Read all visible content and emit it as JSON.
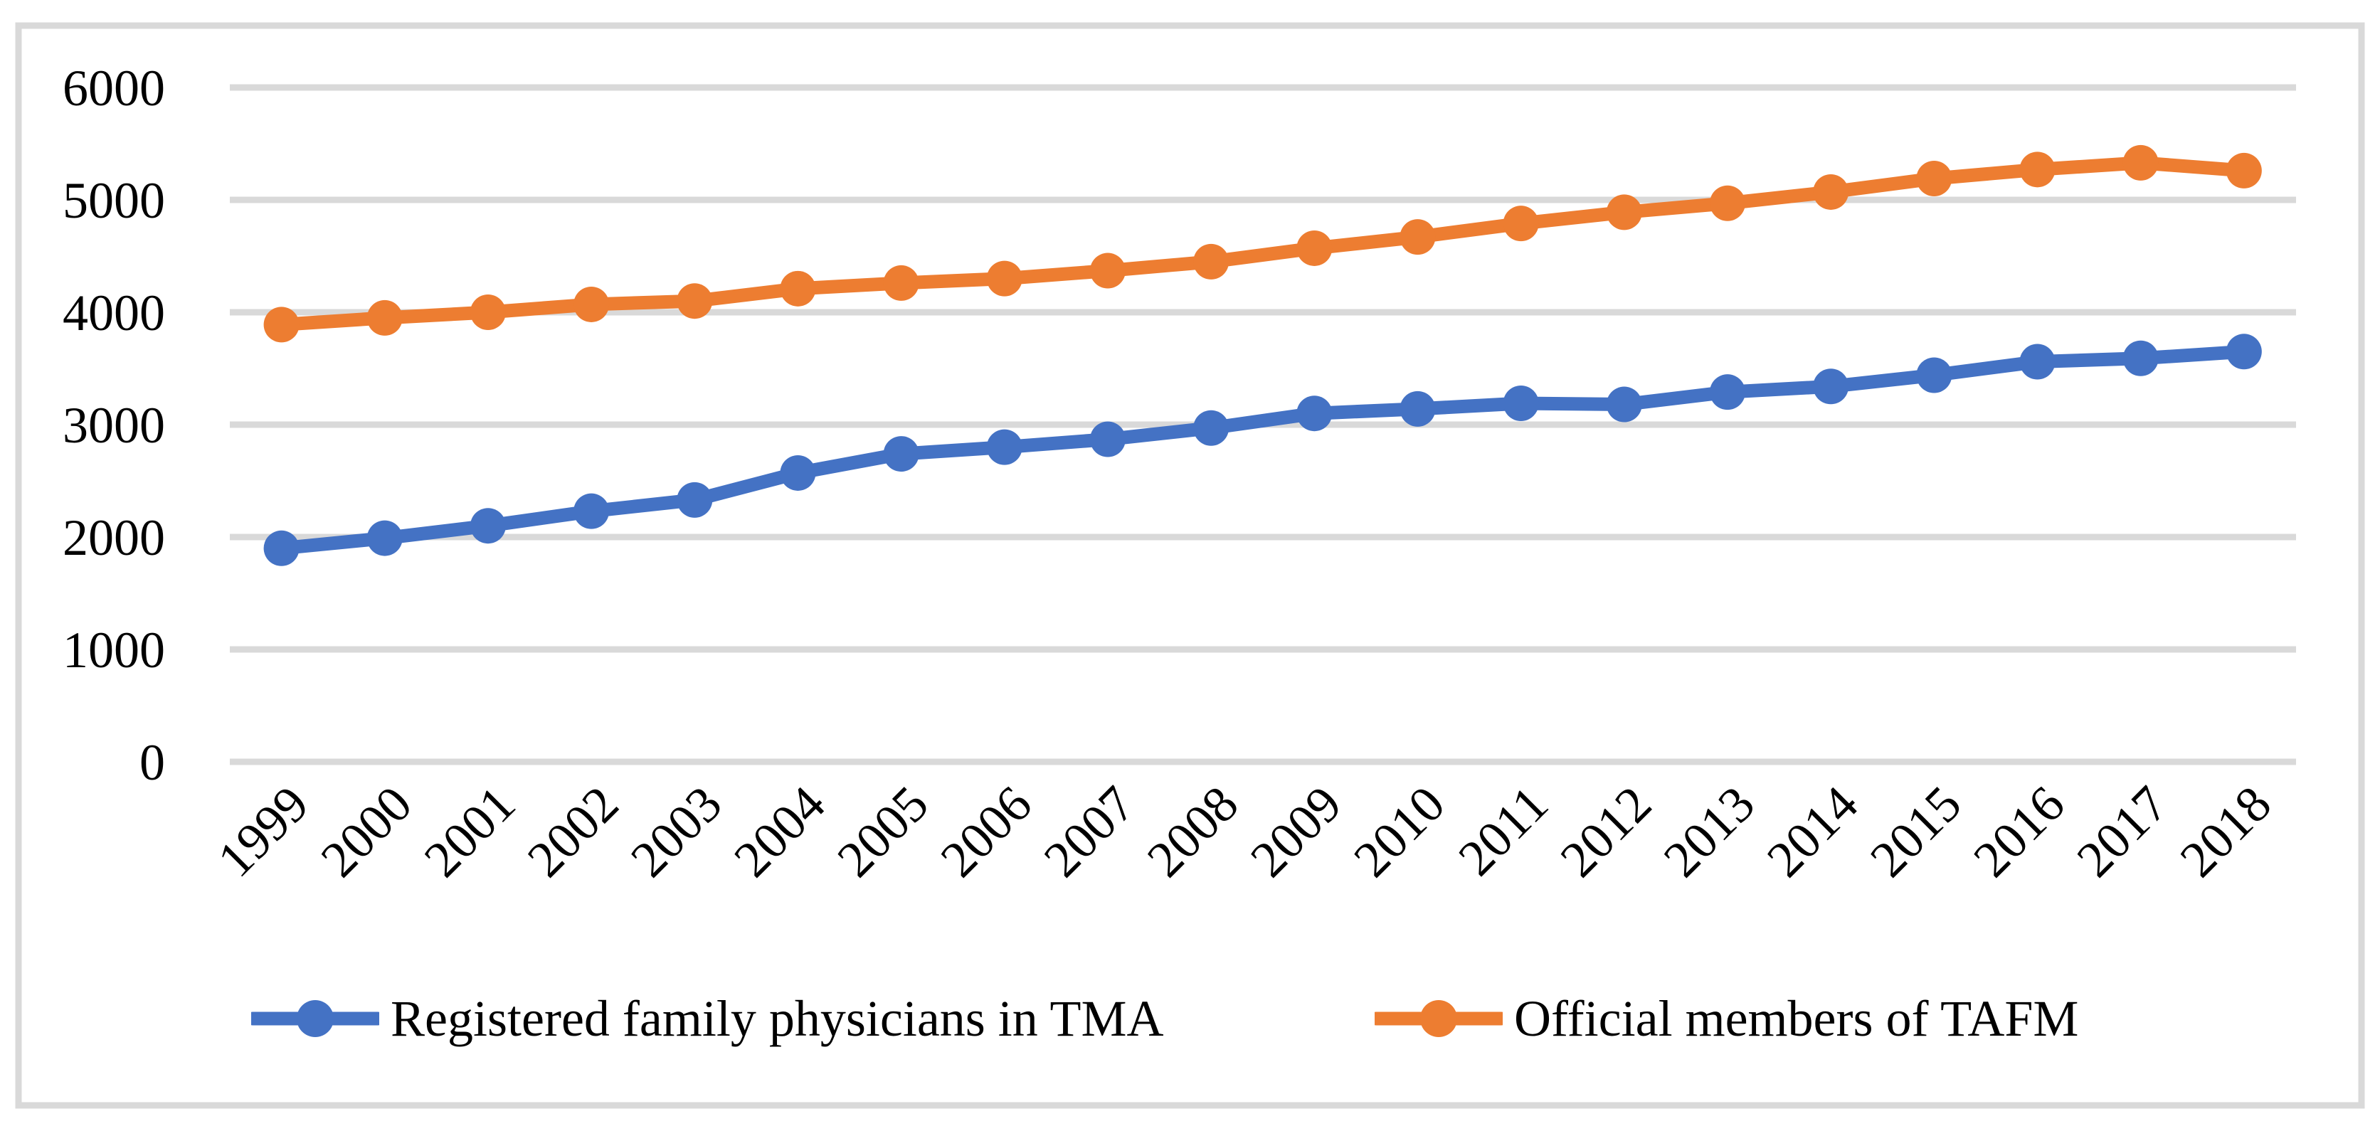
{
  "figure": {
    "background": "#FFFFFF",
    "border_color": "#D9D9D9",
    "text_color": "#000000"
  },
  "chart_data": {
    "type": "line",
    "x": [
      "1999",
      "2000",
      "2001",
      "2002",
      "2003",
      "2004",
      "2005",
      "2006",
      "2007",
      "2008",
      "2009",
      "2010",
      "2011",
      "2012",
      "2013",
      "2014",
      "2015",
      "2016",
      "2017",
      "2018"
    ],
    "series": [
      {
        "name": "Registered family physicians in TMA",
        "color": "#4472C4",
        "values": [
          1900,
          1990,
          2100,
          2230,
          2330,
          2570,
          2740,
          2800,
          2870,
          2970,
          3100,
          3140,
          3190,
          3180,
          3290,
          3340,
          3440,
          3560,
          3590,
          3650
        ]
      },
      {
        "name": "Official members of TAFM",
        "color": "#ED7D31",
        "values": [
          3890,
          3950,
          4000,
          4070,
          4100,
          4210,
          4260,
          4300,
          4370,
          4450,
          4570,
          4670,
          4790,
          4890,
          4970,
          5070,
          5190,
          5270,
          5330,
          5260
        ]
      }
    ],
    "title": "",
    "xlabel": "",
    "ylabel": "",
    "ylim": [
      0,
      6000
    ],
    "yticks": [
      0,
      1000,
      2000,
      3000,
      4000,
      5000,
      6000
    ],
    "grid": "horizontal",
    "gridline_color": "#D9D9D9",
    "marker": "circle",
    "legend_position": "bottom"
  }
}
